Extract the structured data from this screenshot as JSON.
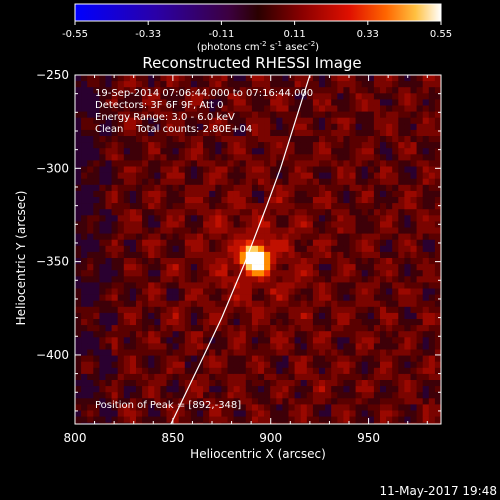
{
  "colorbar": {
    "tick_labels": [
      "-0.55",
      "-0.33",
      "-0.11",
      "0.11",
      "0.33",
      "0.55"
    ],
    "range": [
      -0.55,
      0.55
    ],
    "unit_prefix": "(photons cm",
    "unit_exp1": "-2",
    "unit_mid1": " s",
    "unit_exp2": "-1",
    "unit_mid2": " asec",
    "unit_exp3": "-2",
    "unit_suffix": ")"
  },
  "plot": {
    "title": "Reconstructed RHESSI Image",
    "info_lines": [
      "19-Sep-2014 07:06:44.000 to 07:16:44.000",
      "Detectors: 3F 6F 9F, Att 0",
      "Energy Range: 3.0 - 6.0 keV",
      "Clean    Total counts: 2.80E+04"
    ],
    "peak_label": "Position of Peak = [892,-348]",
    "footer_timestamp": "11-May-2017 19:48"
  },
  "chart_data": {
    "type": "heatmap",
    "title": "Reconstructed RHESSI Image",
    "xlabel": "Heliocentric X (arcsec)",
    "ylabel": "Heliocentric Y (arcsec)",
    "xlim": [
      800,
      987
    ],
    "ylim": [
      -437,
      -250
    ],
    "x_ticks": [
      800,
      850,
      900,
      950
    ],
    "y_ticks": [
      -250,
      -300,
      -350,
      -400
    ],
    "peak": {
      "x": 892,
      "y": -348
    },
    "colorbar_range": [
      -0.55,
      0.55
    ],
    "limb_curve": [
      [
        849,
        -437
      ],
      [
        866,
        -400
      ],
      [
        875,
        -380
      ],
      [
        887,
        -350
      ],
      [
        898,
        -320
      ],
      [
        905,
        -300
      ],
      [
        914,
        -270
      ],
      [
        920,
        -250
      ]
    ]
  },
  "colors": {
    "background": "#000000",
    "limb_line": "#ffffff"
  }
}
